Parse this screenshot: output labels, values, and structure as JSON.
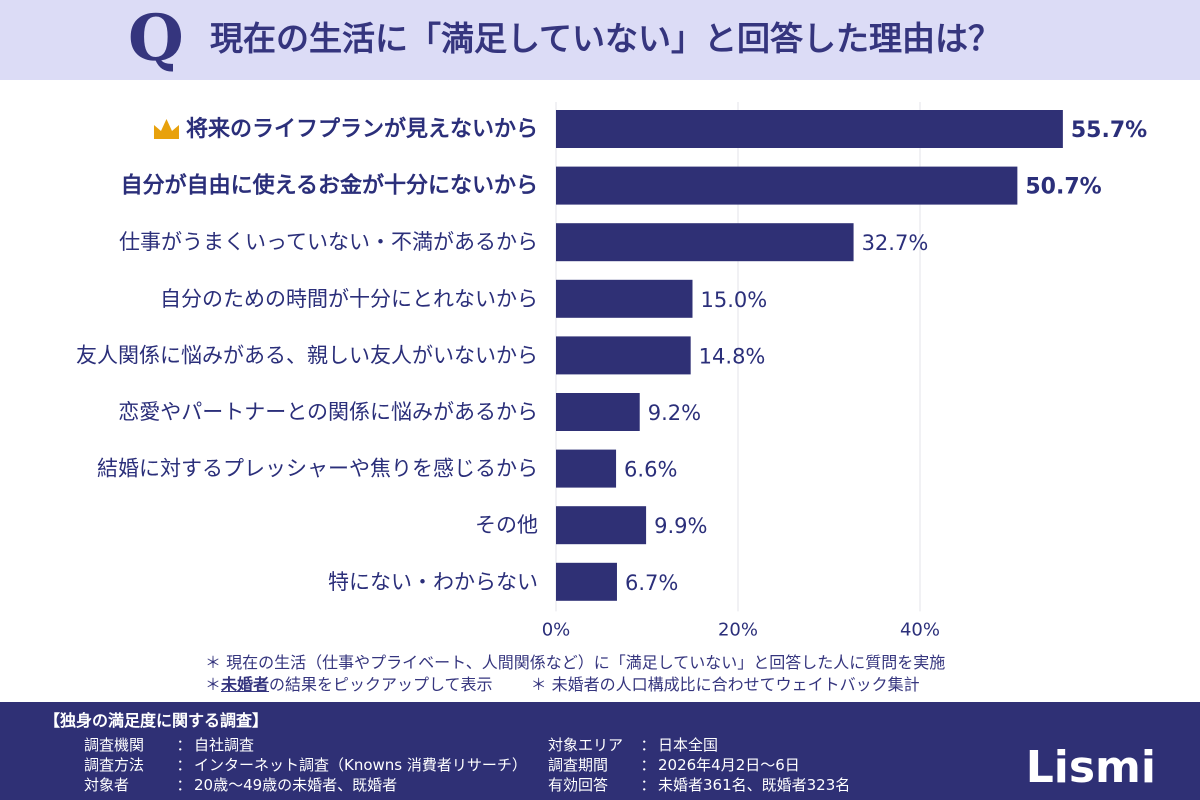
{
  "header": {
    "q_mark": "Q",
    "title": "現在の生活に「満足していない」と回答した理由は？"
  },
  "chart_data": {
    "type": "bar",
    "orientation": "horizontal",
    "categories": [
      "将来のライフプランが見えないから",
      "自分が自由に使えるお金が十分にないから",
      "仕事がうまくいっていない・不満があるから",
      "自分のための時間が十分にとれないから",
      "友人関係に悩みがある、親しい友人がいないから",
      "恋愛やパートナーとの関係に悩みがあるから",
      "結婚に対するプレッシャーや焦りを感じるから",
      "その他",
      "特にない・わからない"
    ],
    "values": [
      55.7,
      50.7,
      32.7,
      15.0,
      14.8,
      9.2,
      6.6,
      9.9,
      6.7
    ],
    "value_labels": [
      "55.7%",
      "50.7%",
      "32.7%",
      "15.0%",
      "14.8%",
      "9.2%",
      "6.6%",
      "9.9%",
      "6.7%"
    ],
    "bold_categories": [
      0,
      1
    ],
    "crown_category": 0,
    "xlim": [
      0,
      60
    ],
    "x_ticks": [
      0,
      20,
      40
    ],
    "x_tick_labels": [
      "0%",
      "20%",
      "40%"
    ],
    "grid": true,
    "bar_color": "#2f3075"
  },
  "notes": {
    "line1": "＊ 現在の生活（仕事やプライベート、人間関係など）に「満足していない」と回答した人に質問を実施",
    "line2_prefix": "＊ ",
    "line2_underlined": "未婚者",
    "line2_rest": "の結果をピックアップして表示",
    "line2_extra": "＊ 未婚者の人口構成比に合わせてウェイトバック集計"
  },
  "footer": {
    "title": "【独身の満足度に関する調査】",
    "left": [
      {
        "key": "調査機関",
        "value": "自社調査"
      },
      {
        "key": "調査方法",
        "value": "インターネット調査（Knowns 消費者リサーチ）"
      },
      {
        "key": "対象者",
        "value": "20歳～49歳の未婚者、既婚者"
      }
    ],
    "right": [
      {
        "key": "対象エリア",
        "value": "日本全国"
      },
      {
        "key": "調査期間",
        "value": "2026年4月2日～6日"
      },
      {
        "key": "有効回答",
        "value": "未婚者361名、既婚者323名"
      }
    ],
    "separator": "：",
    "logo": "Lismi"
  },
  "colors": {
    "header_bg": "#dcdcf6",
    "text_navy": "#2b2f7a",
    "footer_bg": "#2f3075",
    "crown": "#e8a10c"
  }
}
